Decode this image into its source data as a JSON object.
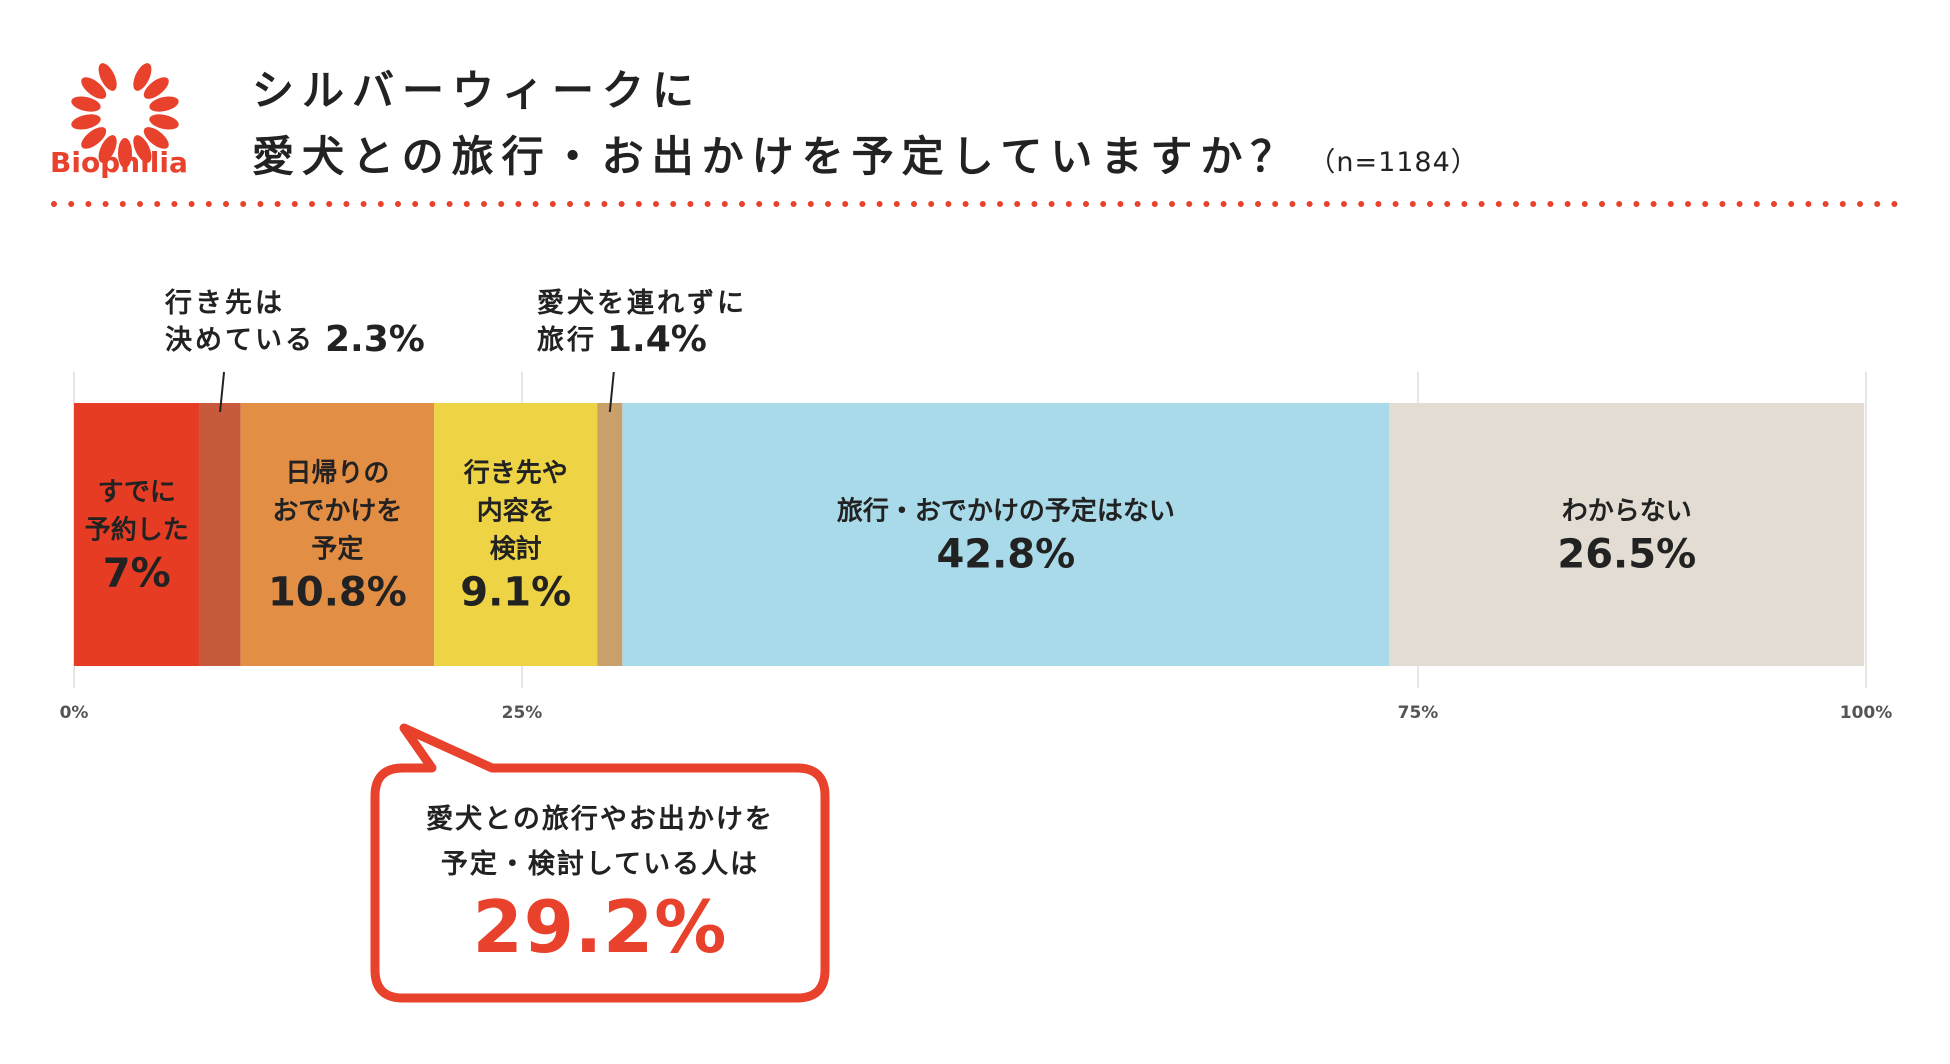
{
  "header": {
    "brand": "Biophilia",
    "title_line1": "シルバーウィークに",
    "title_line2": "愛犬との旅行・お出かけを予定していますか？",
    "sample_size": "（n=1184）"
  },
  "colors": {
    "brand_red": "#e8412c",
    "dot_line": "#e8412c"
  },
  "chart_data": {
    "type": "bar",
    "orientation": "horizontal-stacked",
    "unit": "%",
    "xlim": [
      0,
      100
    ],
    "x_ticks": [
      "0%",
      "25%",
      "75%",
      "100%"
    ],
    "segments": [
      {
        "label": "すでに予約した",
        "value": 7,
        "value_text": "7%",
        "color": "#e63c24"
      },
      {
        "label": "行き先は決めている",
        "value": 2.3,
        "value_text": "2.3%",
        "color": "#c85a3c"
      },
      {
        "label": "日帰りのおでかけを予定",
        "value": 10.8,
        "value_text": "10.8%",
        "color": "#e38e45"
      },
      {
        "label": "行き先や内容を検討",
        "value": 9.1,
        "value_text": "9.1%",
        "color": "#eed444"
      },
      {
        "label": "愛犬を連れずに旅行",
        "value": 1.4,
        "value_text": "1.4%",
        "color": "#c9a06a"
      },
      {
        "label": "旅行・おでかけの予定はない",
        "value": 42.8,
        "value_text": "42.8%",
        "color": "#a8dae9"
      },
      {
        "label": "わからない",
        "value": 26.5,
        "value_text": "26.5%",
        "color": "#e2dcd3"
      }
    ],
    "callouts": [
      {
        "lines": [
          "行き先は",
          "決めている"
        ],
        "value_text": "2.3%"
      },
      {
        "lines": [
          "愛犬を連れずに",
          "旅行"
        ],
        "value_text": "1.4%"
      }
    ],
    "inner_labels": [
      {
        "lines": [
          "すでに",
          "予約した"
        ],
        "value_text": "7%"
      },
      {
        "lines": [
          "日帰りの",
          "おでかけを",
          "予定"
        ],
        "value_text": "10.8%"
      },
      {
        "lines": [
          "行き先や",
          "内容を",
          "検討"
        ],
        "value_text": "9.1%"
      },
      {
        "lines": [
          "旅行・おでかけの予定はない"
        ],
        "value_text": "42.8%"
      },
      {
        "lines": [
          "わからない"
        ],
        "value_text": "26.5%"
      }
    ]
  },
  "summary": {
    "line1": "愛犬との旅行やお出かけを",
    "line2": "予定・検討している人は",
    "value": "29.2%"
  }
}
